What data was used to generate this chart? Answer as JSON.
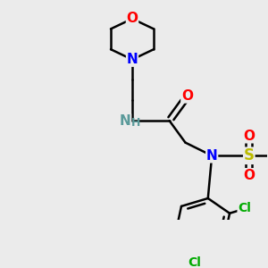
{
  "background_color": "#ebebeb",
  "bond_color": "#000000",
  "line_width": 1.8,
  "font_size": 10,
  "colors": {
    "O": "#ff0000",
    "N": "#0000ff",
    "NH": "#5a9a9a",
    "S": "#bbbb00",
    "Cl": "#00aa00",
    "C": "#000000"
  }
}
